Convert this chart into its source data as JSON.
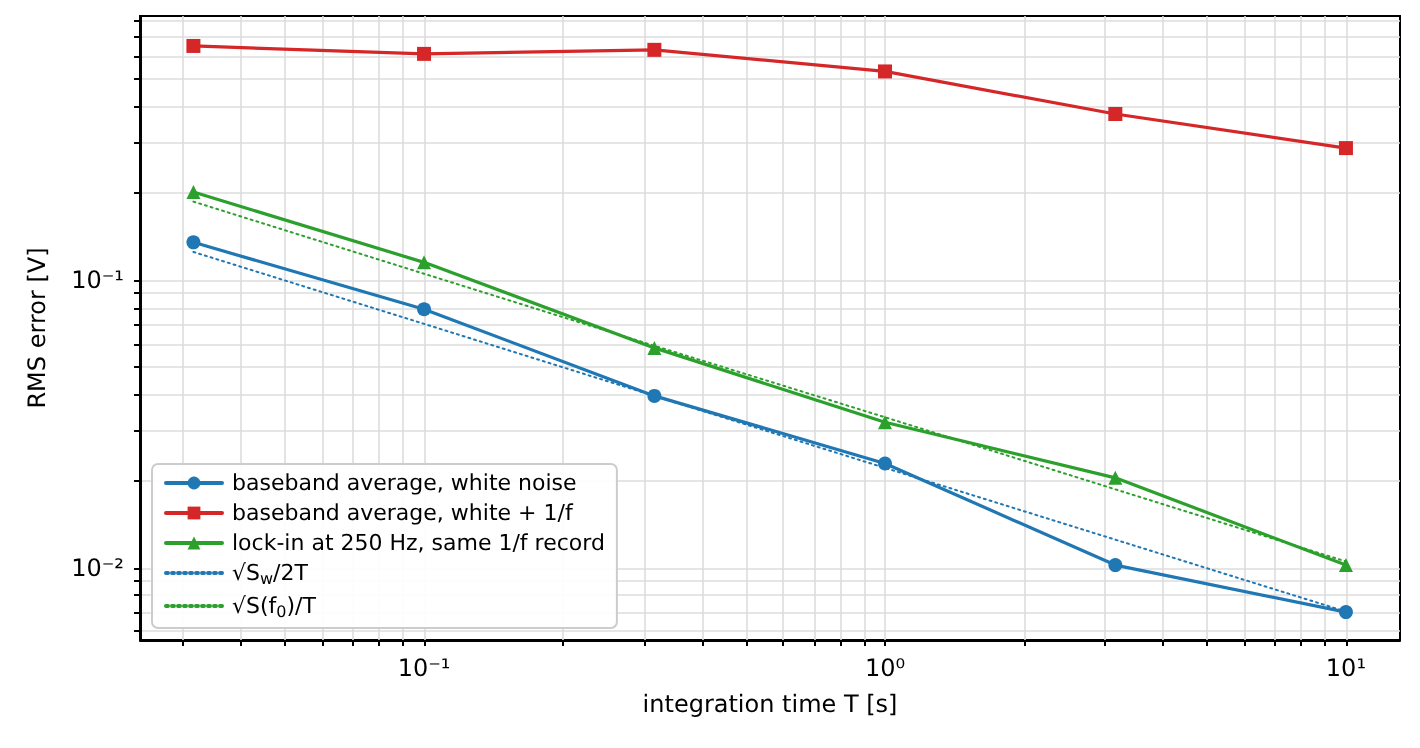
{
  "chart_data": {
    "type": "line",
    "xlabel": "integration time T [s]",
    "ylabel": "RMS error [V]",
    "log": "xy",
    "grid": true,
    "legend": "bottom left",
    "xlim": [
      0.0242,
      13.1
    ],
    "ylim": [
      0.0056,
      0.826
    ],
    "xticks": [
      {
        "value": 0.03,
        "label": null
      },
      {
        "value": 0.04,
        "label": null
      },
      {
        "value": 0.05,
        "label": null
      },
      {
        "value": 0.06,
        "label": null
      },
      {
        "value": 0.07,
        "label": null
      },
      {
        "value": 0.08,
        "label": null
      },
      {
        "value": 0.09,
        "label": null
      },
      {
        "value": 0.1,
        "label": "10⁻¹"
      },
      {
        "value": 0.2,
        "label": null
      },
      {
        "value": 0.3,
        "label": null
      },
      {
        "value": 0.4,
        "label": null
      },
      {
        "value": 0.5,
        "label": null
      },
      {
        "value": 0.6,
        "label": null
      },
      {
        "value": 0.7,
        "label": null
      },
      {
        "value": 0.8,
        "label": null
      },
      {
        "value": 0.9,
        "label": null
      },
      {
        "value": 1,
        "label": "10⁰"
      },
      {
        "value": 2,
        "label": null
      },
      {
        "value": 3,
        "label": null
      },
      {
        "value": 4,
        "label": null
      },
      {
        "value": 5,
        "label": null
      },
      {
        "value": 6,
        "label": null
      },
      {
        "value": 7,
        "label": null
      },
      {
        "value": 8,
        "label": null
      },
      {
        "value": 9,
        "label": null
      },
      {
        "value": 10,
        "label": "10¹"
      }
    ],
    "yticks": [
      {
        "value": 0.006,
        "label": null
      },
      {
        "value": 0.007,
        "label": null
      },
      {
        "value": 0.008,
        "label": null
      },
      {
        "value": 0.009,
        "label": null
      },
      {
        "value": 0.01,
        "label": "10⁻²"
      },
      {
        "value": 0.02,
        "label": null
      },
      {
        "value": 0.03,
        "label": null
      },
      {
        "value": 0.04,
        "label": null
      },
      {
        "value": 0.05,
        "label": null
      },
      {
        "value": 0.06,
        "label": null
      },
      {
        "value": 0.07,
        "label": null
      },
      {
        "value": 0.08,
        "label": null
      },
      {
        "value": 0.09,
        "label": null
      },
      {
        "value": 0.1,
        "label": "10⁻¹"
      },
      {
        "value": 0.2,
        "label": null
      },
      {
        "value": 0.3,
        "label": null
      },
      {
        "value": 0.4,
        "label": null
      },
      {
        "value": 0.5,
        "label": null
      },
      {
        "value": 0.6,
        "label": null
      },
      {
        "value": 0.7,
        "label": null
      },
      {
        "value": 0.8,
        "label": null
      }
    ],
    "x": [
      0.0316,
      0.1,
      0.316,
      1,
      3.16,
      10
    ],
    "series": [
      {
        "name": "baseband average, white noise",
        "color": "#1f77b4",
        "marker": "circle",
        "line_style": "solid",
        "values": [
          0.135,
          0.079,
          0.0395,
          0.023,
          0.0102,
          0.007
        ]
      },
      {
        "name": "baseband average, white + 1/f",
        "color": "#d62728",
        "marker": "square",
        "line_style": "solid",
        "values": [
          0.65,
          0.61,
          0.63,
          0.53,
          0.377,
          0.287
        ]
      },
      {
        "name": "lock-in at 250 Hz, same 1/f record",
        "color": "#2ca02c",
        "marker": "triangle",
        "line_style": "solid",
        "values": [
          0.202,
          0.115,
          0.058,
          0.032,
          0.0205,
          0.0102
        ]
      },
      {
        "name": "√S$_{w}$/2T",
        "color": "#1f77b4",
        "marker": "none",
        "line_style": "dotted",
        "values": [
          0.125,
          0.0703,
          0.0395,
          0.0222,
          0.0125,
          0.00703
        ]
      },
      {
        "name": "√S(f$_{0}$)/T",
        "color": "#2ca02c",
        "marker": "none",
        "line_style": "dotted",
        "values": [
          0.187,
          0.105,
          0.059,
          0.0333,
          0.0187,
          0.0105
        ]
      }
    ]
  }
}
